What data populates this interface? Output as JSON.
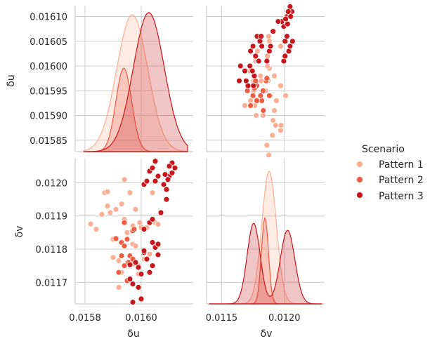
{
  "chart_data": {
    "type": "scatter",
    "subtype": "pairplot",
    "variables": [
      "δu",
      "δv"
    ],
    "hue": "Scenario",
    "legend": {
      "title": "Scenario",
      "placement": "right"
    },
    "axes": {
      "du": {
        "label": "δu",
        "lim": [
          0.015827,
          0.016122
        ],
        "ticks": [
          0.01585,
          0.0159,
          0.01595,
          0.016,
          0.01605,
          0.0161
        ],
        "tick_labels": [
          "0.01585",
          "0.01590",
          "0.01595",
          "0.01600",
          "0.01605",
          "0.01610"
        ],
        "bottom_ticks": [
          0.0158,
          0.016
        ],
        "bottom_tick_labels": [
          "0.0158",
          "0.0160"
        ],
        "bottom_lim": [
          0.015765,
          0.016185
        ]
      },
      "dv": {
        "label": "δv",
        "lim": [
          0.011635,
          0.012075
        ],
        "ticks": [
          0.0117,
          0.0118,
          0.0119,
          0.012
        ],
        "tick_labels": [
          "0.0117",
          "0.0118",
          "0.0119",
          "0.0120"
        ],
        "bottom_ticks": [
          0.0115,
          0.012
        ],
        "bottom_tick_labels": [
          "0.0115",
          "0.0120"
        ],
        "bottom_lim": [
          0.01138,
          0.01232
        ]
      }
    },
    "grid": true,
    "series": [
      {
        "name": "Pattern 1",
        "color": "#fcaf93",
        "du_kde": {
          "mean": 0.015968,
          "sd": 5.5e-05,
          "peak": 0.985
        },
        "dv_kde": {
          "mean": 0.011878,
          "sd": 5.8e-05,
          "peak": 0.955
        },
        "points": [
          [
            0.01582,
            0.011876
          ],
          [
            0.01584,
            0.01186
          ],
          [
            0.01586,
            0.011905
          ],
          [
            0.01587,
            0.01197
          ],
          [
            0.01588,
            0.01193
          ],
          [
            0.01589,
            0.01191
          ],
          [
            0.0159,
            0.01183
          ],
          [
            0.0159,
            0.011775
          ],
          [
            0.01591,
            0.01192
          ],
          [
            0.01592,
            0.011765
          ],
          [
            0.01592,
            0.011685
          ],
          [
            0.01593,
            0.01173
          ],
          [
            0.01594,
            0.01201
          ],
          [
            0.01594,
            0.01189
          ],
          [
            0.01595,
            0.01185
          ],
          [
            0.01595,
            0.011755
          ],
          [
            0.01596,
            0.01197
          ],
          [
            0.01597,
            0.011815
          ],
          [
            0.01597,
            0.01187
          ],
          [
            0.01598,
            0.01192
          ],
          [
            0.01598,
            0.01181
          ],
          [
            0.01599,
            0.01175
          ],
          [
            0.015995,
            0.01188
          ],
          [
            0.016,
            0.011865
          ],
          [
            0.01601,
            0.01177
          ],
          [
            0.01602,
            0.011865
          ],
          [
            0.01603,
            0.011785
          ],
          [
            0.01604,
            0.01197
          ],
          [
            0.01605,
            0.01188
          ],
          [
            0.01606,
            0.011875
          ],
          [
            0.01588,
            0.011973
          ],
          [
            0.01593,
            0.011936
          ],
          [
            0.01597,
            0.011755
          ],
          [
            0.01599,
            0.011725
          ]
        ]
      },
      {
        "name": "Pattern 2",
        "color": "#f05c42",
        "du_kde": {
          "mean": 0.015938,
          "sd": 2.8e-05,
          "peak": 0.6
        },
        "dv_kde": {
          "mean": 0.011845,
          "sd": 2.8e-05,
          "peak": 0.62
        },
        "points": [
          [
            0.01591,
            0.011832
          ],
          [
            0.01592,
            0.01173
          ],
          [
            0.01593,
            0.01182
          ],
          [
            0.01593,
            0.01178
          ],
          [
            0.01594,
            0.01188
          ],
          [
            0.01594,
            0.01181
          ],
          [
            0.01595,
            0.011705
          ],
          [
            0.01595,
            0.01183
          ],
          [
            0.01596,
            0.01178
          ],
          [
            0.01597,
            0.011855
          ],
          [
            0.015975,
            0.01186
          ],
          [
            0.01594,
            0.01175
          ],
          [
            0.015955,
            0.01176
          ],
          [
            0.01597,
            0.01177
          ],
          [
            0.01596,
            0.011752
          ]
        ]
      },
      {
        "name": "Pattern 3",
        "color": "#c5171c",
        "du_kde": {
          "mean": 0.016027,
          "sd": 5.5e-05,
          "peak": 1.0
        },
        "dv_kde_bimodal": [
          {
            "mean": 0.011755,
            "sd": 5.2e-05,
            "peak": 0.58
          },
          {
            "mean": 0.012025,
            "sd": 5.8e-05,
            "peak": 0.53
          }
        ],
        "points": [
          [
            0.01596,
            0.011753
          ],
          [
            0.01597,
            0.011695
          ],
          [
            0.01598,
            0.01176
          ],
          [
            0.01599,
            0.011685
          ],
          [
            0.016,
            0.011725
          ],
          [
            0.01601,
            0.01179
          ],
          [
            0.01602,
            0.01177
          ],
          [
            0.01603,
            0.01173
          ],
          [
            0.01604,
            0.01182
          ],
          [
            0.01605,
            0.011805
          ],
          [
            0.01606,
            0.011783
          ],
          [
            0.01599,
            0.011745
          ],
          [
            0.01601,
            0.011795
          ],
          [
            0.01604,
            0.01175
          ],
          [
            0.01606,
            0.011815
          ],
          [
            0.01601,
            0.01186
          ],
          [
            0.01603,
            0.01188
          ],
          [
            0.01604,
            0.01189
          ],
          [
            0.01596,
            0.01171
          ],
          [
            0.01597,
            0.01164
          ],
          [
            0.016,
            0.01165
          ],
          [
            0.01601,
            0.011995
          ],
          [
            0.01602,
            0.012005
          ],
          [
            0.01603,
            0.012035
          ],
          [
            0.01604,
            0.012045
          ],
          [
            0.01605,
            0.012005
          ],
          [
            0.01606,
            0.01202
          ],
          [
            0.01608,
            0.011995
          ],
          [
            0.0161,
            0.01202
          ],
          [
            0.01611,
            0.01206
          ],
          [
            0.01612,
            0.012045
          ],
          [
            0.0161,
            0.01205
          ],
          [
            0.01609,
            0.01198
          ],
          [
            0.01609,
            0.01195
          ],
          [
            0.01607,
            0.01191
          ],
          [
            0.016085,
            0.012025
          ],
          [
            0.016095,
            0.01201
          ],
          [
            0.01611,
            0.01203
          ],
          [
            0.01605,
            0.012065
          ]
        ]
      }
    ]
  }
}
